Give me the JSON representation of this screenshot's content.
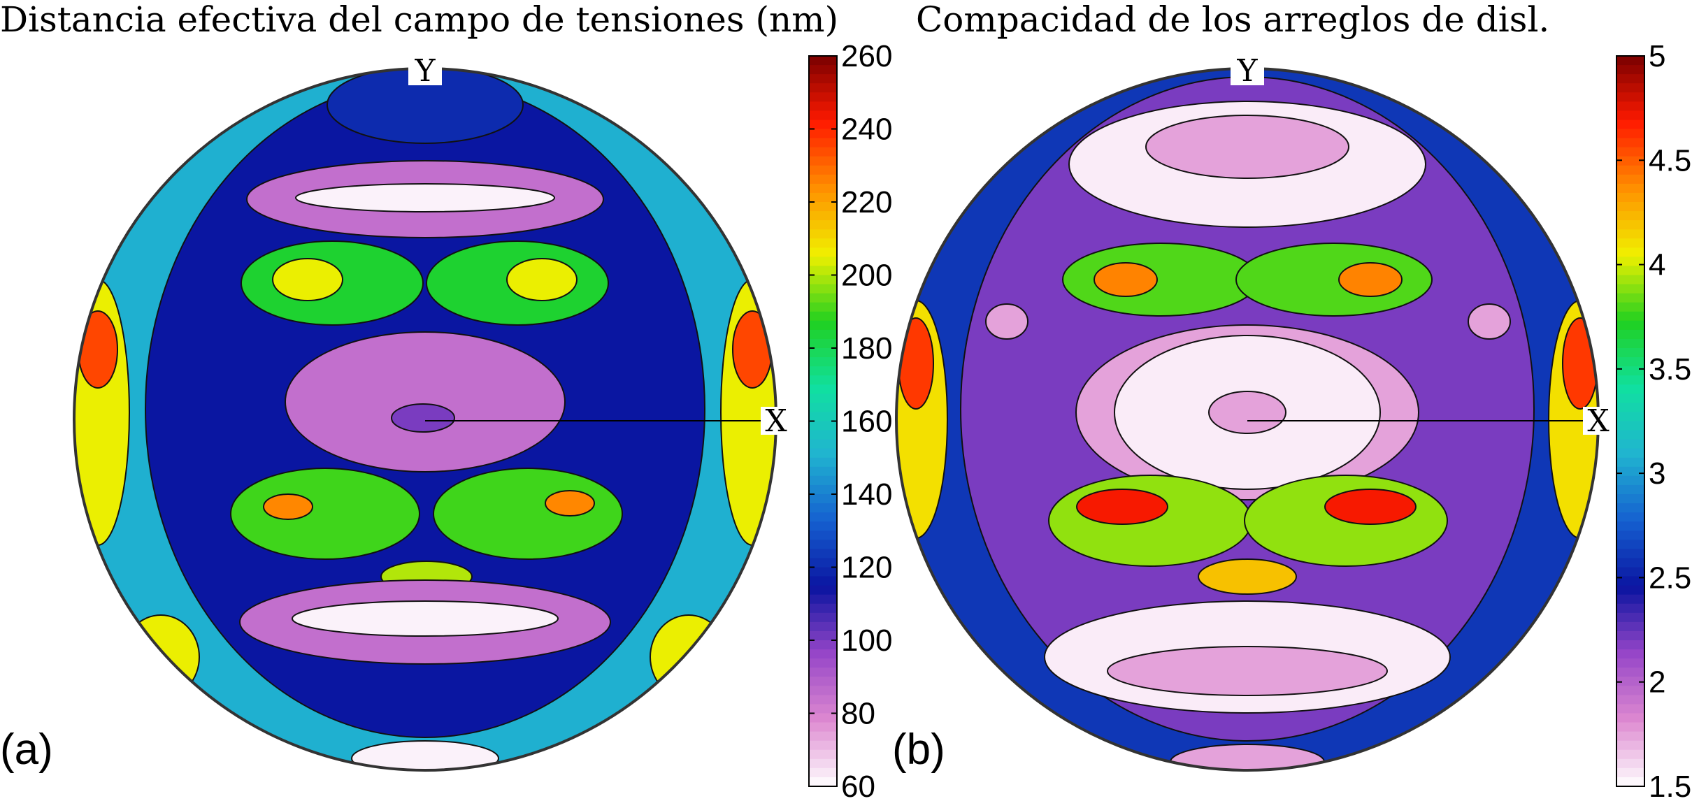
{
  "chart_data": [
    {
      "type": "heatmap",
      "projection": "pole figure (stereographic, circular)",
      "panel_label": "(a)",
      "title": "Distancia efectiva del campo de tensiones (nm)",
      "axis_markers": [
        "X",
        "Y"
      ],
      "colorbar": {
        "min": 60,
        "max": 260,
        "ticks": [
          60,
          80,
          100,
          120,
          140,
          160,
          180,
          200,
          220,
          240,
          260
        ],
        "tick_labels": [
          "60",
          "80",
          "100",
          "120",
          "140",
          "160",
          "180",
          "200",
          "220",
          "240",
          "260"
        ],
        "colormap": [
          "#ffffff",
          "#dd88d0",
          "#9646c8",
          "#0a14a0",
          "#1560d0",
          "#20b4d0",
          "#10e0a0",
          "#20d020",
          "#f0f000",
          "#ff9000",
          "#ff1a00",
          "#7a0000"
        ]
      },
      "contour_regions": [
        {
          "name": "outer-band",
          "value": 150
        },
        {
          "name": "inner-ring",
          "value": 115
        },
        {
          "name": "top-cap",
          "value": 120
        },
        {
          "name": "top-violet-band",
          "value": 85
        },
        {
          "name": "top-white-band",
          "value": 62
        },
        {
          "name": "upper-lobes",
          "value": 185
        },
        {
          "name": "upper-lobe-cores",
          "value": 205
        },
        {
          "name": "center-violet",
          "value": 85
        },
        {
          "name": "center-core",
          "value": 100
        },
        {
          "name": "lower-lobes",
          "value": 190
        },
        {
          "name": "lower-lobe-cores",
          "value": 225
        },
        {
          "name": "lower-center-blob",
          "value": 200
        },
        {
          "name": "bottom-violet-band",
          "value": 85
        },
        {
          "name": "bottom-white-band",
          "value": 62
        },
        {
          "name": "side-lobes",
          "value": 205
        },
        {
          "name": "side-lobe-cores",
          "value": 235
        }
      ]
    },
    {
      "type": "heatmap",
      "projection": "pole figure (stereographic, circular)",
      "panel_label": "(b)",
      "title": "Compacidad de los arreglos de disl.",
      "axis_markers": [
        "X",
        "Y"
      ],
      "colorbar": {
        "min": 1.5,
        "max": 5,
        "ticks": [
          1.5,
          2,
          2.5,
          3,
          3.5,
          4,
          4.5,
          5
        ],
        "tick_labels": [
          "1.5",
          "2",
          "2.5",
          "3",
          "3.5",
          "4",
          "4.5",
          "5"
        ],
        "colormap": [
          "#ffffff",
          "#dd88d0",
          "#9646c8",
          "#0a14a0",
          "#1560d0",
          "#20b4d0",
          "#10e0a0",
          "#20d020",
          "#f0f000",
          "#ff9000",
          "#ff1a00",
          "#7a0000"
        ]
      },
      "contour_regions": [
        {
          "name": "outer-band",
          "value": 2.6
        },
        {
          "name": "inner-field",
          "value": 2.2
        },
        {
          "name": "top-white-cap",
          "value": 1.55
        },
        {
          "name": "top-pink-core",
          "value": 1.75
        },
        {
          "name": "upper-lobes",
          "value": 3.8
        },
        {
          "name": "upper-lobe-cores",
          "value": 4.4
        },
        {
          "name": "center-pink",
          "value": 1.75
        },
        {
          "name": "center-white",
          "value": 1.55
        },
        {
          "name": "center-core",
          "value": 1.75
        },
        {
          "name": "lower-lobes",
          "value": 3.9
        },
        {
          "name": "lower-lobe-cores",
          "value": 4.7
        },
        {
          "name": "lower-center-blob",
          "value": 4.2
        },
        {
          "name": "bottom-white",
          "value": 1.55
        },
        {
          "name": "bottom-pink",
          "value": 1.75
        },
        {
          "name": "side-lobes",
          "value": 4.1
        },
        {
          "name": "side-lobe-cores",
          "value": 4.6
        }
      ]
    }
  ]
}
